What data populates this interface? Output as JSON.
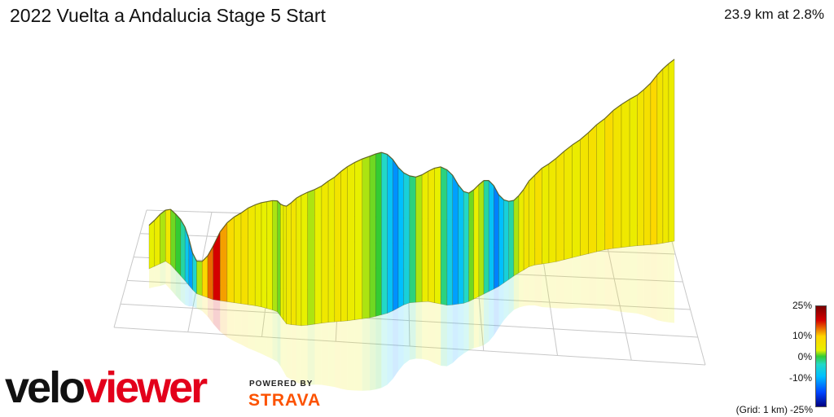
{
  "header": {
    "title": "2022 Vuelta a Andalucia Stage 5 Start",
    "stats": "23.9 km at 2.8%"
  },
  "legend": {
    "labels": {
      "top": "25%",
      "ten": "10%",
      "zero": "0%",
      "minus_ten": "-10%",
      "bottom": "-25%"
    },
    "grid_note": "(Grid: 1 km)",
    "stops": [
      {
        "pct": 25,
        "color": "#7a0000"
      },
      {
        "pct": 18,
        "color": "#d40000"
      },
      {
        "pct": 10,
        "color": "#ffd400"
      },
      {
        "pct": 3,
        "color": "#e8f000"
      },
      {
        "pct": 0,
        "color": "#33cc33"
      },
      {
        "pct": -4,
        "color": "#22d8c8"
      },
      {
        "pct": -10,
        "color": "#00bfff"
      },
      {
        "pct": -18,
        "color": "#0044ff"
      },
      {
        "pct": -25,
        "color": "#000080"
      }
    ]
  },
  "branding": {
    "logo_part1": "velo",
    "logo_part2": "viewer",
    "powered_by": "POWERED BY",
    "strava": "STRAVA"
  },
  "profile": {
    "gradients": [
      3,
      4,
      2,
      5,
      1,
      0,
      -3,
      -8,
      -12,
      -5,
      2,
      9,
      14,
      18,
      12,
      8,
      6,
      7,
      5,
      4,
      3,
      3,
      2,
      1,
      3,
      4,
      5,
      6,
      4,
      3,
      2,
      3,
      5,
      4,
      6,
      5,
      4,
      3,
      2,
      1,
      0,
      -4,
      -9,
      -13,
      -10,
      -6,
      -2,
      2,
      4,
      5,
      3,
      -2,
      -7,
      -12,
      -9,
      -4,
      1,
      3,
      2,
      -3,
      -9,
      -14,
      -10,
      -6,
      -3,
      2,
      4,
      6,
      5,
      7,
      4,
      5,
      6,
      5,
      4,
      6,
      7,
      5,
      8,
      6,
      5,
      4,
      6,
      7,
      9,
      6,
      5,
      4
    ]
  }
}
